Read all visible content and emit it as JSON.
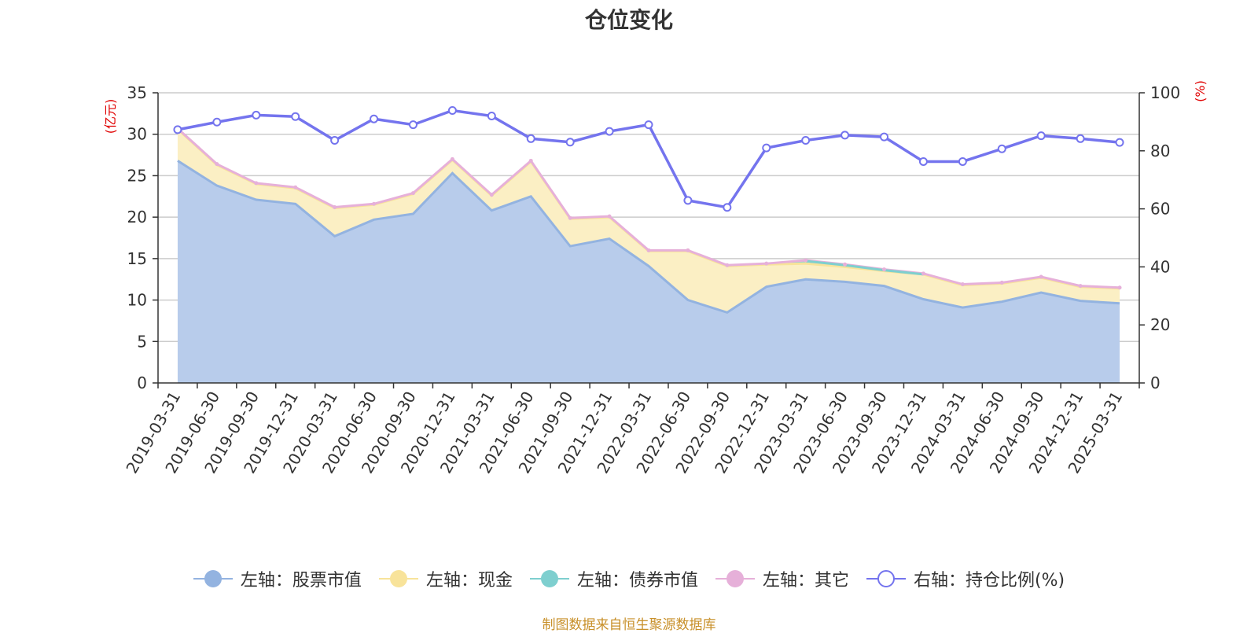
{
  "colors": {
    "stock": "#93b3e0",
    "stock_fill": "#b8cceb",
    "cash": "#f8e39a",
    "cash_fill": "#fbefc4",
    "bond": "#7ecfcf",
    "other": "#e6b0d9",
    "ratio": "#7474ee",
    "unit": "#e00000",
    "source": "#c8902a"
  },
  "chart_data": {
    "type": "area",
    "title": "仓位变化",
    "left_unit": "(亿元)",
    "right_unit": "(%)",
    "x": [
      "2019-03-31",
      "2019-06-30",
      "2019-09-30",
      "2019-12-31",
      "2020-03-31",
      "2020-06-30",
      "2020-09-30",
      "2020-12-31",
      "2021-03-31",
      "2021-06-30",
      "2021-09-30",
      "2021-12-31",
      "2022-03-31",
      "2022-06-30",
      "2022-09-30",
      "2022-12-31",
      "2023-03-31",
      "2023-06-30",
      "2023-09-30",
      "2023-12-31",
      "2024-03-31",
      "2024-06-30",
      "2024-09-30",
      "2024-12-31",
      "2025-03-31"
    ],
    "left_axis": {
      "min": 0,
      "max": 35,
      "ticks": [
        0,
        5,
        10,
        15,
        20,
        25,
        30,
        35
      ]
    },
    "right_axis": {
      "min": 0,
      "max": 100,
      "ticks": [
        0,
        20,
        40,
        60,
        80,
        100
      ]
    },
    "grid": true,
    "legend_position": "bottom",
    "series": [
      {
        "name": "左轴：股票市值",
        "axis": "left",
        "stack": true,
        "values": [
          26.8,
          23.8,
          22.1,
          21.6,
          17.7,
          19.7,
          20.4,
          25.3,
          20.8,
          22.5,
          16.5,
          17.4,
          14.1,
          10.0,
          8.5,
          11.6,
          12.5,
          12.2,
          11.7,
          10.1,
          9.1,
          9.8,
          10.9,
          9.9,
          9.6
        ]
      },
      {
        "name": "左轴：现金",
        "axis": "left",
        "stack": true,
        "values": [
          3.8,
          2.5,
          1.9,
          1.9,
          3.4,
          1.8,
          2.4,
          1.6,
          1.8,
          4.2,
          3.3,
          2.6,
          1.8,
          5.9,
          5.6,
          2.7,
          1.9,
          1.8,
          1.8,
          3.0,
          2.7,
          2.2,
          1.8,
          1.7,
          1.8
        ]
      },
      {
        "name": "左轴：债券市值",
        "axis": "left",
        "stack": true,
        "values": [
          0,
          0,
          0,
          0,
          0,
          0,
          0,
          0,
          0,
          0,
          0,
          0,
          0,
          0,
          0,
          0,
          0.3,
          0.2,
          0.1,
          0,
          0,
          0,
          0,
          0,
          0
        ]
      },
      {
        "name": "左轴：其它",
        "axis": "left",
        "stack": true,
        "values": [
          0.1,
          0.1,
          0.1,
          0.1,
          0.1,
          0.1,
          0.1,
          0.1,
          0.1,
          0.1,
          0.1,
          0.1,
          0.1,
          0.1,
          0.1,
          0.1,
          0.1,
          0.1,
          0.1,
          0.1,
          0.1,
          0.1,
          0.1,
          0.1,
          0.1
        ]
      },
      {
        "name": "右轴：持仓比例(%)",
        "axis": "right",
        "stack": false,
        "values": [
          87.3,
          89.9,
          92.3,
          91.8,
          83.6,
          91.0,
          89.0,
          93.9,
          92.0,
          84.2,
          83.0,
          86.7,
          89.0,
          62.9,
          60.5,
          81.0,
          83.6,
          85.4,
          84.8,
          76.3,
          76.3,
          80.7,
          85.2,
          84.2,
          82.9
        ]
      }
    ]
  },
  "source_note": "制图数据来自恒生聚源数据库"
}
